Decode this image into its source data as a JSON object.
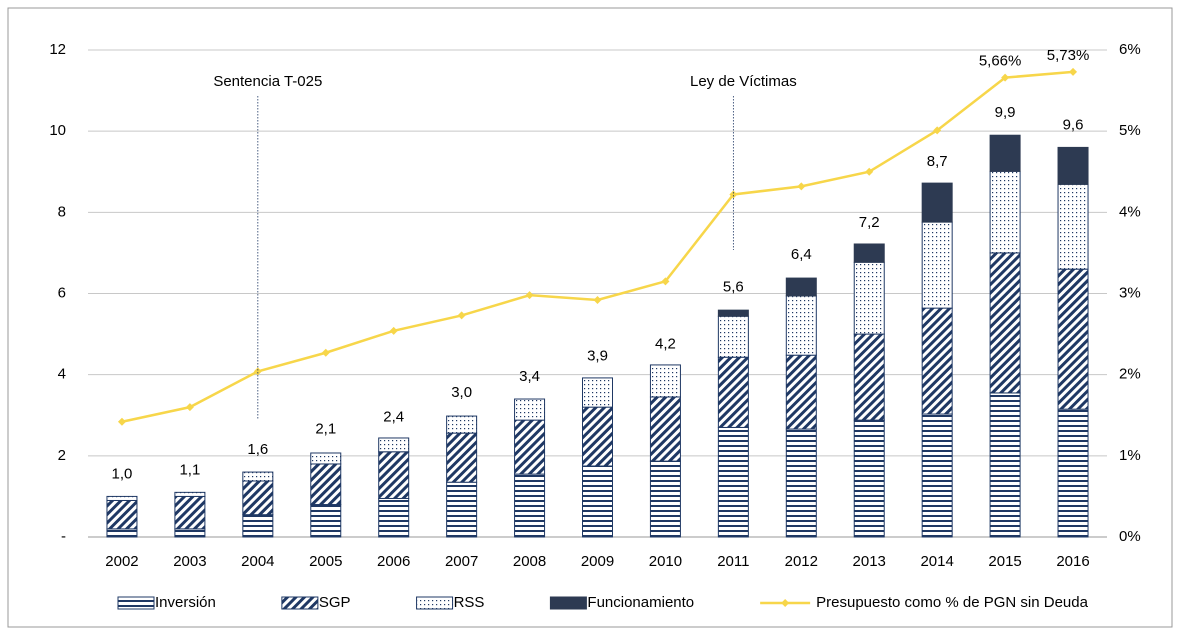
{
  "chart_data": {
    "type": "bar",
    "categories": [
      "2002",
      "2003",
      "2004",
      "2005",
      "2006",
      "2007",
      "2008",
      "2009",
      "2010",
      "2011",
      "2012",
      "2013",
      "2014",
      "2015",
      "2016"
    ],
    "series": [
      {
        "name": "Inversión",
        "color": "#1f3864",
        "pattern": "horizontal",
        "values": [
          0.2,
          0.2,
          0.55,
          0.8,
          0.95,
          1.35,
          1.55,
          1.75,
          1.87,
          2.7,
          2.66,
          2.88,
          3.03,
          3.55,
          3.15
        ]
      },
      {
        "name": "SGP",
        "color": "#1f3864",
        "pattern": "diagonal",
        "values": [
          0.7,
          0.8,
          0.83,
          1.0,
          1.15,
          1.21,
          1.33,
          1.45,
          1.58,
          1.73,
          1.82,
          2.12,
          2.61,
          3.45,
          3.45
        ]
      },
      {
        "name": "RSS",
        "color": "#1f3864",
        "pattern": "dots",
        "values": [
          0.1,
          0.1,
          0.22,
          0.27,
          0.34,
          0.42,
          0.52,
          0.72,
          0.79,
          1.01,
          1.46,
          1.77,
          2.12,
          2.01,
          2.09
        ]
      },
      {
        "name": "Funcionamiento",
        "color": "#2d3a52",
        "pattern": "solid",
        "values": [
          0,
          0,
          0,
          0,
          0,
          0,
          0,
          0,
          0,
          0.15,
          0.44,
          0.45,
          0.96,
          0.89,
          0.91
        ]
      },
      {
        "name": "Presupuesto como % de PGN sin Deuda",
        "type": "line",
        "axis": "y2",
        "color": "#f7d64a",
        "values": [
          1.42,
          1.6,
          2.04,
          2.27,
          2.54,
          2.73,
          2.98,
          2.92,
          3.15,
          4.22,
          4.32,
          4.5,
          5.01,
          5.66,
          5.73
        ],
        "value_labels": [
          null,
          null,
          null,
          null,
          null,
          null,
          null,
          null,
          null,
          null,
          null,
          null,
          null,
          "5,66%",
          "5,73%"
        ]
      }
    ],
    "totals": [
      1.0,
      1.1,
      1.6,
      2.1,
      2.4,
      3.0,
      3.4,
      3.9,
      4.2,
      5.6,
      6.4,
      7.2,
      8.7,
      9.9,
      9.6
    ],
    "total_labels": [
      "1,0",
      "1,1",
      "1,6",
      "2,1",
      "2,4",
      "3,0",
      "3,4",
      "3,9",
      "4,2",
      "5,6",
      "6,4",
      "7,2",
      "8,7",
      "9,9",
      "9,6"
    ],
    "annotations": [
      {
        "text": "Sentencia T-025",
        "category": "2004"
      },
      {
        "text": "Ley de Víctimas",
        "category": "2011"
      }
    ],
    "ylim": [
      0,
      12
    ],
    "yticks": [
      {
        "value": 0,
        "label": "-"
      },
      2,
      4,
      6,
      8,
      10,
      12
    ],
    "y2lim": [
      0,
      6
    ],
    "y2ticks": [
      {
        "value": 0,
        "label": "0%"
      },
      {
        "value": 1,
        "label": "1%"
      },
      {
        "value": 2,
        "label": "2%"
      },
      {
        "value": 3,
        "label": "3%"
      },
      {
        "value": 4,
        "label": "4%"
      },
      {
        "value": 5,
        "label": "5%"
      },
      {
        "value": 6,
        "label": "6%"
      }
    ],
    "grid": true,
    "legend": "bottom"
  }
}
